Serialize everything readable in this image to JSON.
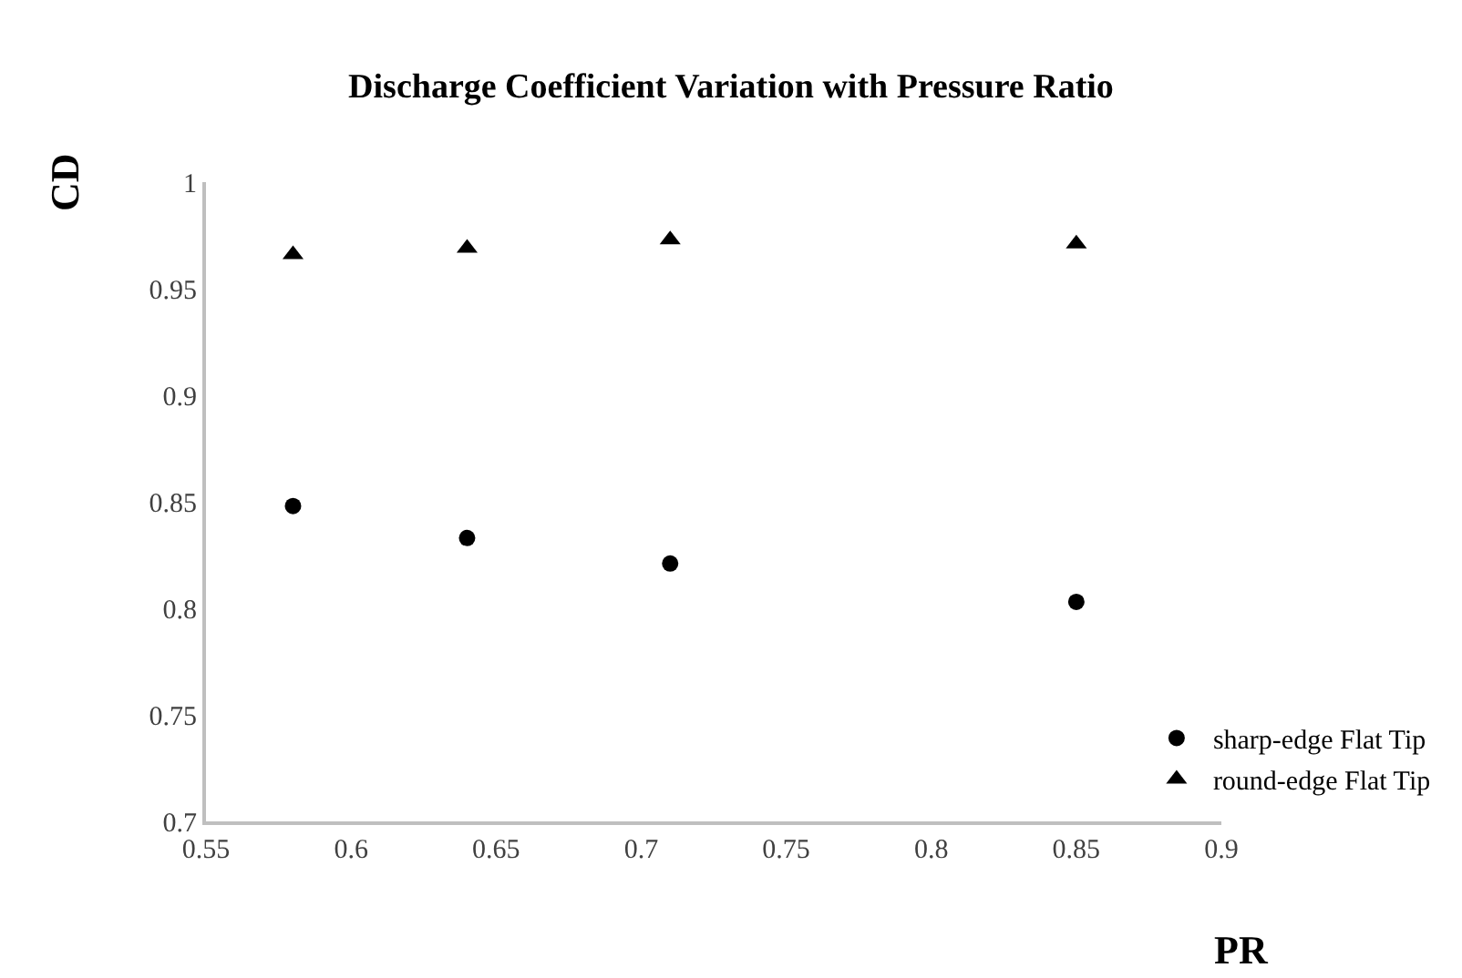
{
  "chart_data": {
    "type": "scatter",
    "title": "Discharge Coefficient Variation with Pressure Ratio",
    "xlabel": "PR",
    "ylabel": "CD",
    "x": [
      0.58,
      0.64,
      0.71,
      0.85
    ],
    "series": [
      {
        "name": "sharp-edge Flat Tip",
        "color": "#000000",
        "marker": "circle",
        "values": [
          0.848,
          0.833,
          0.821,
          0.803
        ]
      },
      {
        "name": "round-edge Flat Tip",
        "color": "#000000",
        "marker": "triangle",
        "values": [
          0.966,
          0.969,
          0.973,
          0.971
        ]
      }
    ],
    "xlim": [
      0.55,
      0.9
    ],
    "xticks": [
      0.55,
      0.6,
      0.65,
      0.7,
      0.75,
      0.8,
      0.85,
      0.9
    ],
    "ylim": [
      0.7,
      1
    ],
    "yticks": [
      0.7,
      0.75,
      0.8,
      0.85,
      0.9,
      0.95,
      1
    ],
    "grid": false,
    "legend": "bottom right"
  }
}
